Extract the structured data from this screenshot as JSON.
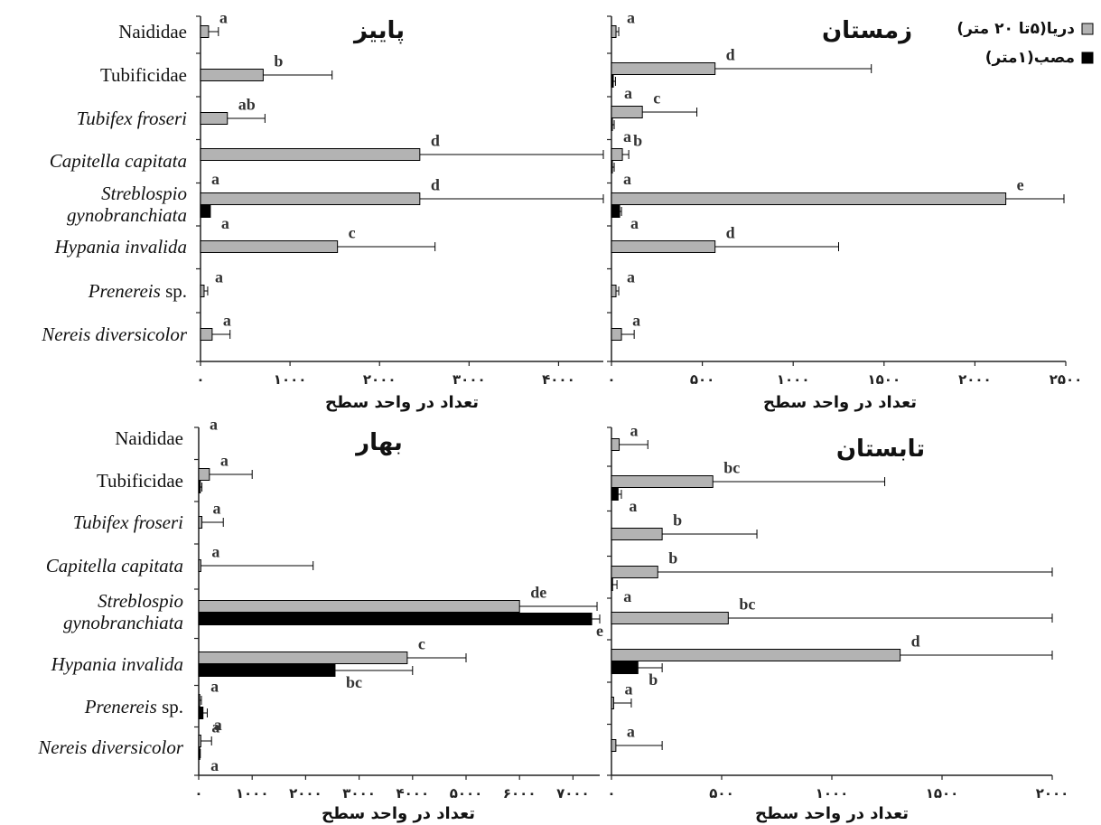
{
  "chart_data": [
    {
      "type": "bar",
      "orientation": "horizontal",
      "title": "پاییز",
      "xlabel": "تعداد در واحد سطح",
      "xlim": [
        0,
        4500
      ],
      "xticks": [
        0,
        1000,
        2000,
        3000,
        4000
      ],
      "xtick_labels": [
        "۰",
        "۱۰۰۰",
        "۲۰۰۰",
        "۳۰۰۰",
        "۴۰۰۰"
      ],
      "series": [
        {
          "values": [
            90,
            700,
            300,
            2450,
            2450,
            1530,
            40,
            130
          ],
          "errors": [
            110,
            770,
            420,
            2050,
            2050,
            1090,
            40,
            200
          ],
          "letters": [
            "a",
            "b",
            "ab",
            "d",
            "d",
            "c",
            "a",
            "a"
          ]
        },
        {
          "values": [
            null,
            null,
            null,
            0,
            110,
            null,
            null,
            null
          ],
          "errors": [
            null,
            null,
            null,
            0,
            0,
            null,
            null,
            null
          ],
          "letters": [
            null,
            null,
            null,
            "a",
            "a",
            null,
            null,
            null
          ]
        }
      ]
    },
    {
      "type": "bar",
      "orientation": "horizontal",
      "title": "زمستان",
      "xlabel": "تعداد در واحد سطح",
      "xlim": [
        0,
        2500
      ],
      "xticks": [
        0,
        500,
        1000,
        1500,
        2000,
        2500
      ],
      "xtick_labels": [
        "۰",
        "۵۰۰",
        "۱۰۰۰",
        "۱۵۰۰",
        "۲۰۰۰",
        "۲۵۰۰"
      ],
      "series": [
        {
          "values": [
            25,
            570,
            170,
            60,
            2170,
            570,
            25,
            55
          ],
          "errors": [
            15,
            860,
            300,
            35,
            320,
            680,
            15,
            70
          ],
          "letters": [
            "a",
            "d",
            "c",
            "b",
            "e",
            "d",
            "a",
            "a"
          ]
        },
        {
          "values": [
            null,
            10,
            5,
            5,
            45,
            null,
            null,
            null
          ],
          "errors": [
            null,
            12,
            10,
            10,
            10,
            null,
            null,
            null
          ],
          "letters": [
            null,
            "a",
            "a",
            "a",
            "a",
            null,
            null,
            null
          ]
        }
      ]
    },
    {
      "type": "bar",
      "orientation": "horizontal",
      "title": "بهار",
      "xlabel": "تعداد در واحد سطح",
      "xlim": [
        0,
        7500
      ],
      "xticks": [
        0,
        1000,
        2000,
        3000,
        4000,
        5000,
        6000,
        7000
      ],
      "xtick_labels": [
        "۰",
        "۱۰۰۰",
        "۲۰۰۰",
        "۳۰۰۰",
        "۴۰۰۰",
        "۵۰۰۰",
        "۶۰۰۰",
        "۷۰۰۰"
      ],
      "series": [
        {
          "values": [
            0,
            200,
            60,
            40,
            6000,
            3900,
            20,
            40
          ],
          "errors": [
            0,
            800,
            400,
            2100,
            1450,
            1100,
            30,
            200
          ],
          "letters": [
            "a",
            "a",
            "a",
            "a",
            "de",
            "c",
            "a",
            "a"
          ]
        },
        {
          "values": [
            null,
            30,
            null,
            null,
            7350,
            2550,
            80,
            20
          ],
          "errors": [
            null,
            30,
            null,
            null,
            150,
            1450,
            80,
            10
          ],
          "letters": [
            null,
            null,
            null,
            null,
            "e",
            "bc",
            "a",
            "a"
          ]
        }
      ]
    },
    {
      "type": "bar",
      "orientation": "horizontal",
      "title": "تابستان",
      "xlabel": "تعداد در واحد سطح",
      "xlim": [
        0,
        2000
      ],
      "xticks": [
        0,
        500,
        1000,
        1500,
        2000
      ],
      "xtick_labels": [
        "۰",
        "۵۰۰",
        "۱۰۰۰",
        "۱۵۰۰",
        "۲۰۰۰"
      ],
      "series": [
        {
          "values": [
            35,
            460,
            230,
            210,
            530,
            1310,
            10,
            20
          ],
          "errors": [
            130,
            780,
            430,
            1790,
            1470,
            690,
            80,
            210
          ],
          "letters": [
            "a",
            "bc",
            "b",
            "b",
            "bc",
            "d",
            "a",
            "a"
          ]
        },
        {
          "values": [
            null,
            30,
            null,
            5,
            null,
            120,
            null,
            null
          ],
          "errors": [
            null,
            15,
            null,
            20,
            null,
            110,
            null,
            null
          ],
          "letters": [
            null,
            "a",
            null,
            "a",
            null,
            "b",
            null,
            null
          ]
        }
      ]
    }
  ],
  "categories": [
    {
      "main": "Naididae",
      "italic": false
    },
    {
      "main": "Tubificidae",
      "italic": false
    },
    {
      "main": "Tubifex froseri",
      "italic": true
    },
    {
      "main": "Capitella capitata",
      "italic": true
    },
    {
      "main": "Streblospio gynobranchiata",
      "line1": "Streblospio",
      "line2": "gynobranchiata",
      "italic": true
    },
    {
      "main": "Hypania invalida",
      "italic": true
    },
    {
      "main": "Prenereis",
      "suffix": " sp.",
      "italic": true
    },
    {
      "main": "Nereis diversicolor",
      "italic": true
    }
  ],
  "legend": [
    {
      "label": "دریا(۵تا ۲۰ متر)",
      "color": "#b3b3b3"
    },
    {
      "label": "مصب(۱متر)",
      "color": "#000000"
    }
  ],
  "colors": {
    "sea": "#b3b3b3",
    "estuary": "#000000",
    "axis": "#222222"
  }
}
